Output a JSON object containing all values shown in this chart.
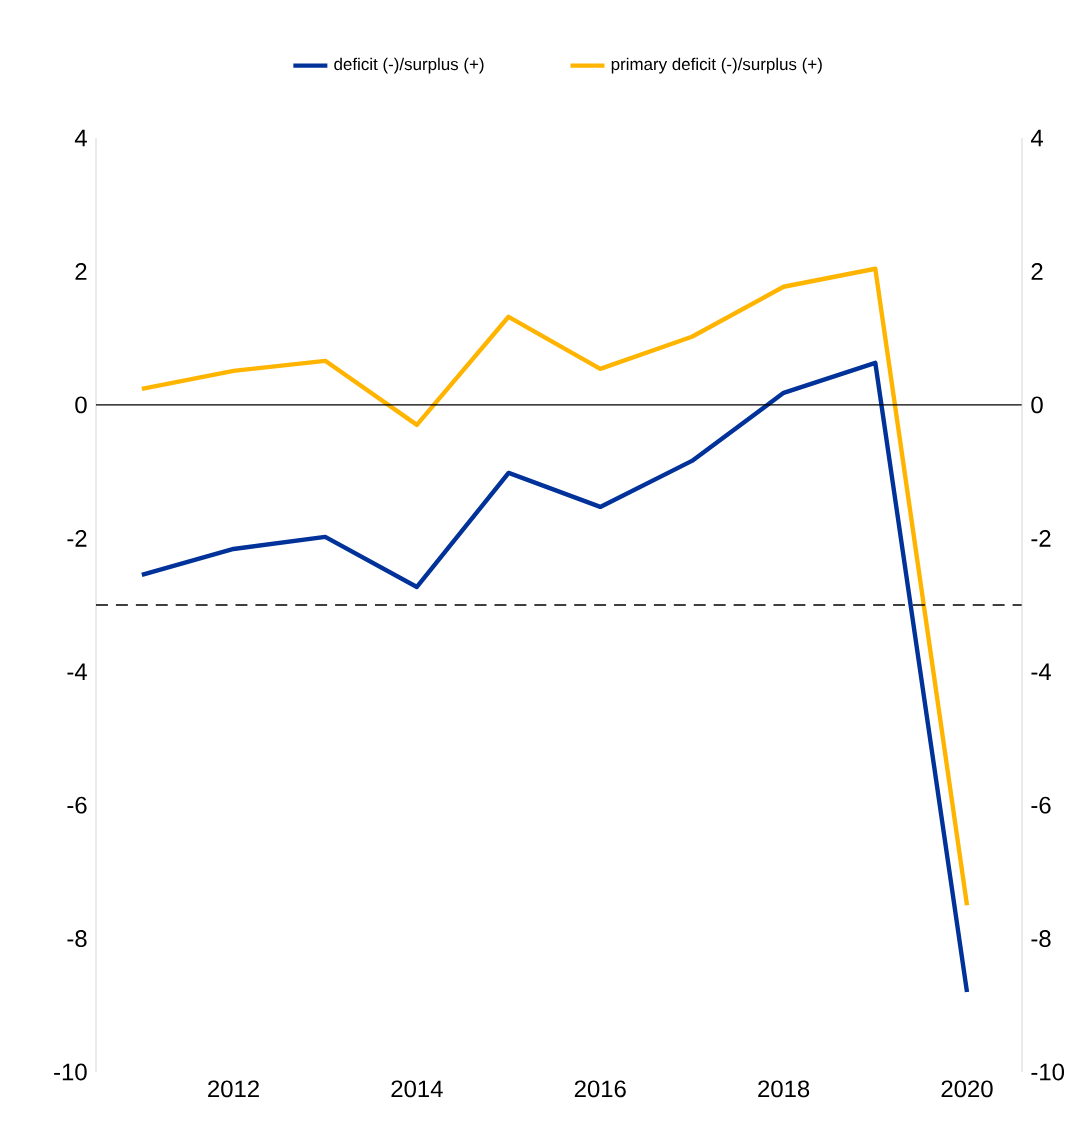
{
  "chart_data": {
    "type": "line",
    "x": [
      2011,
      2012,
      2013,
      2014,
      2015,
      2016,
      2017,
      2018,
      2019,
      2020
    ],
    "series": [
      {
        "name": "deficit (-)/surplus (+)",
        "color": "#003299",
        "values": [
          -2.55,
          -2.16,
          -1.98,
          -2.73,
          -1.02,
          -1.53,
          -0.84,
          0.18,
          0.63,
          -8.8
        ]
      },
      {
        "name": "primary deficit (-)/surplus (+)",
        "color": "#ffb400",
        "values": [
          0.24,
          0.51,
          0.66,
          -0.3,
          1.32,
          0.54,
          1.02,
          1.77,
          2.04,
          -7.5
        ]
      }
    ],
    "xlim": [
      2010.5,
      2020.6
    ],
    "xticks": [
      2012,
      2014,
      2016,
      2018,
      2020
    ],
    "ylim": [
      -10,
      4
    ],
    "yticks": [
      -10,
      -8,
      -6,
      -4,
      -2,
      0,
      2,
      4
    ],
    "y2lim": [
      -10,
      4
    ],
    "y2ticks": [
      -10,
      -8,
      -6,
      -4,
      -2,
      0,
      2,
      4
    ],
    "ref_lines": [
      {
        "axis": "y",
        "value": 0,
        "color": "#000000",
        "line_style": "solid"
      },
      {
        "axis": "y",
        "value": -3,
        "color": "#000000",
        "line_style": "dashed"
      }
    ],
    "grid": false,
    "legend": "top",
    "marker": "none",
    "line_style": "solid"
  }
}
